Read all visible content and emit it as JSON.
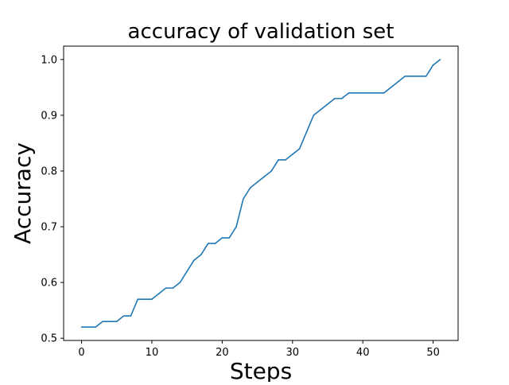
{
  "chart_data": {
    "type": "line",
    "title": "accuracy of validation set",
    "xlabel": "Steps",
    "ylabel": "Accuracy",
    "xlim": [
      -2.55,
      53.55
    ],
    "ylim": [
      0.496,
      1.024
    ],
    "xticks": [
      0,
      10,
      20,
      30,
      40,
      50
    ],
    "yticks": [
      0.5,
      0.6,
      0.7,
      0.8,
      0.9,
      1.0
    ],
    "ytick_labels": [
      "0.5",
      "0.6",
      "0.7",
      "0.8",
      "0.9",
      "1.0"
    ],
    "grid": false,
    "series": [
      {
        "color": "#1f77b4",
        "x": [
          0,
          1,
          2,
          3,
          4,
          5,
          6,
          7,
          8,
          9,
          10,
          11,
          12,
          13,
          14,
          15,
          16,
          17,
          18,
          19,
          20,
          21,
          22,
          23,
          24,
          25,
          26,
          27,
          28,
          29,
          30,
          31,
          32,
          33,
          34,
          35,
          36,
          37,
          38,
          39,
          40,
          41,
          42,
          43,
          44,
          45,
          46,
          47,
          48,
          49,
          50,
          51
        ],
        "y": [
          0.52,
          0.52,
          0.52,
          0.53,
          0.53,
          0.53,
          0.54,
          0.54,
          0.57,
          0.57,
          0.57,
          0.58,
          0.59,
          0.59,
          0.6,
          0.62,
          0.64,
          0.65,
          0.67,
          0.67,
          0.68,
          0.68,
          0.7,
          0.75,
          0.77,
          0.78,
          0.79,
          0.8,
          0.82,
          0.82,
          0.83,
          0.84,
          0.87,
          0.9,
          0.91,
          0.92,
          0.93,
          0.93,
          0.94,
          0.94,
          0.94,
          0.94,
          0.94,
          0.94,
          0.95,
          0.96,
          0.97,
          0.97,
          0.97,
          0.97,
          0.99,
          1.0
        ]
      }
    ]
  }
}
